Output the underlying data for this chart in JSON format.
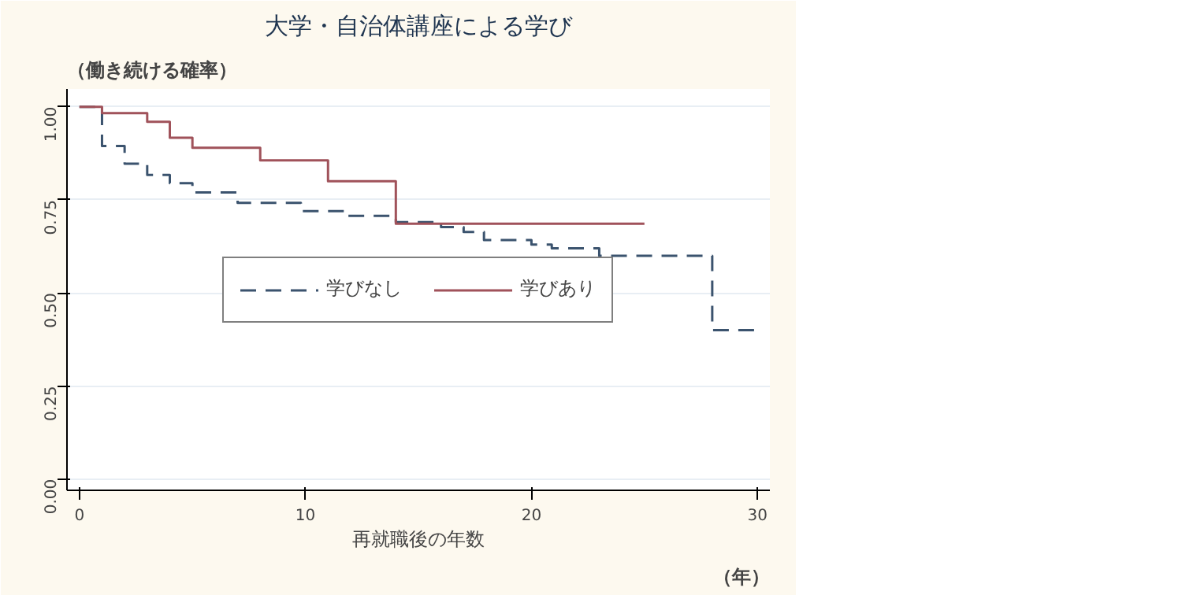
{
  "chart_data": {
    "type": "step",
    "title": "大学・自治体講座による学び",
    "xlabel": "再就職後の年数",
    "annotations": [
      "（働き続ける確率）",
      "（年）"
    ],
    "xlim": [
      -0.55,
      30.55
    ],
    "ylim": [
      -0.03,
      1.048
    ],
    "xticks": [
      0,
      10,
      20,
      30
    ],
    "yticks": [
      {
        "value": 0,
        "label": "0.00"
      },
      {
        "value": 0.25,
        "label": "0.25"
      },
      {
        "value": 0.5,
        "label": "0.50"
      },
      {
        "value": 0.75,
        "label": "0.75"
      },
      {
        "value": 1,
        "label": "1.00"
      }
    ],
    "grid": "y",
    "legend": "center",
    "series": [
      {
        "name": "学びなし",
        "color": "#3b536e",
        "line_style": "dashed",
        "x": [
          0,
          1,
          2,
          3,
          4,
          5,
          7,
          9.8,
          11.9,
          14,
          16,
          17,
          17.9,
          20,
          20.9,
          23,
          28,
          30
        ],
        "values": [
          1.0,
          0.895,
          0.847,
          0.817,
          0.795,
          0.77,
          0.742,
          0.72,
          0.707,
          0.69,
          0.677,
          0.664,
          0.642,
          0.63,
          0.62,
          0.6,
          0.4,
          0.4
        ]
      },
      {
        "name": "学びあり",
        "color": "#a0525a",
        "line_style": "solid",
        "x": [
          0,
          1,
          3,
          4,
          5,
          8,
          11,
          14,
          25
        ],
        "values": [
          1.0,
          0.983,
          0.96,
          0.917,
          0.89,
          0.856,
          0.8,
          0.686,
          0.686
        ]
      }
    ]
  }
}
